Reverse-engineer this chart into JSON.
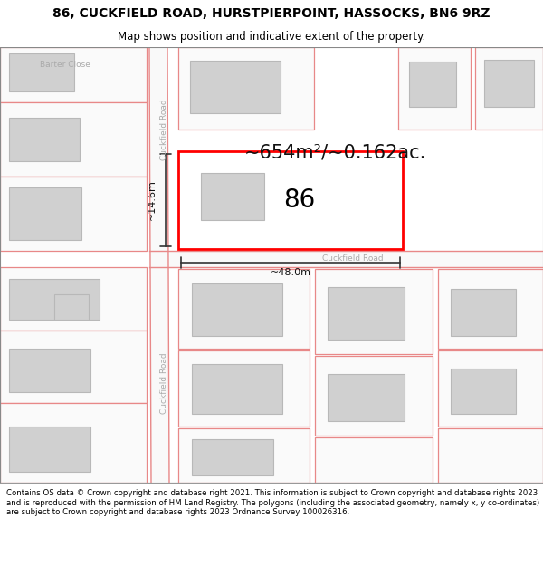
{
  "title": "86, CUCKFIELD ROAD, HURSTPIERPOINT, HASSOCKS, BN6 9RZ",
  "subtitle": "Map shows position and indicative extent of the property.",
  "footer": "Contains OS data © Crown copyright and database right 2021. This information is subject to Crown copyright and database rights 2023 and is reproduced with the permission of HM Land Registry. The polygons (including the associated geometry, namely x, y co-ordinates) are subject to Crown copyright and database rights 2023 Ordnance Survey 100026316.",
  "bg_color": "#ffffff",
  "map_bg": "#ffffff",
  "road_color": "#f5c8c8",
  "road_line_color": "#e88888",
  "building_fill": "#d0d0d0",
  "building_outline": "#b8b8b8",
  "highlight_fill": "#ffffff",
  "highlight_outline": "#ff0000",
  "area_text": "~654m²/~0.162ac.",
  "property_number": "86",
  "dim_width": "~48.0m",
  "dim_height": "~14.6m",
  "road_label_1": "Cuckfield Road",
  "road_label_2": "Cuckfield Road",
  "road_label_horiz": "Cuckfield Road",
  "barter_close_label": "Barter Close",
  "title_fontsize": 10,
  "subtitle_fontsize": 8.5,
  "footer_fontsize": 6.2,
  "label_color": "#aaaaaa",
  "map_border_color": "#888888"
}
